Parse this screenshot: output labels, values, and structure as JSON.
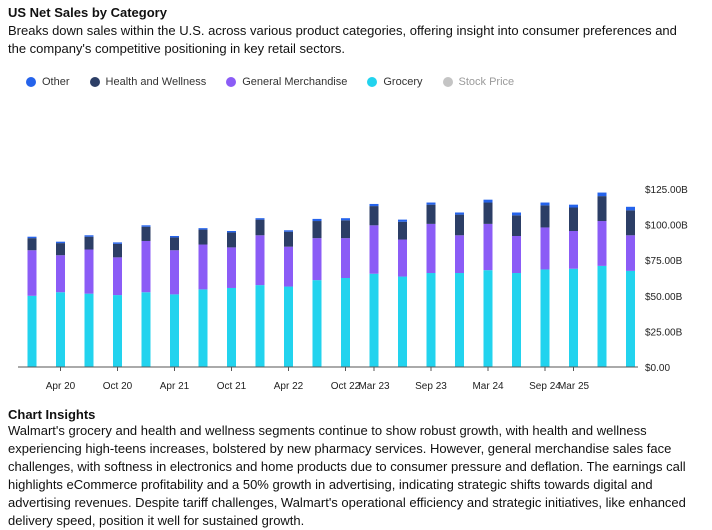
{
  "title": "US Net Sales by Category",
  "subtitle": "Breaks down sales within the U.S. across various product categories, offering insight into consumer preferences and the company's competitive positioning in key retail sectors.",
  "legend": [
    {
      "label": "Other",
      "color": "#2563eb",
      "muted": false
    },
    {
      "label": "Health and Wellness",
      "color": "#2c3e66",
      "muted": false
    },
    {
      "label": "General Merchandise",
      "color": "#8b5cf6",
      "muted": false
    },
    {
      "label": "Grocery",
      "color": "#22d3ee",
      "muted": false
    },
    {
      "label": "Stock Price",
      "color": "#c4c4c4",
      "muted": true
    }
  ],
  "chart_data": {
    "type": "bar",
    "stacked": true,
    "y_axis_position": "right",
    "ylim": [
      0,
      125
    ],
    "y_ticks": [
      0,
      25,
      50,
      75,
      100,
      125
    ],
    "y_tick_labels": [
      "$0.00",
      "$25.00B",
      "$50.00B",
      "$75.00B",
      "$100.00B",
      "$125.00B"
    ],
    "x_tick_labels": [
      {
        "index": 1,
        "label": "Apr 20"
      },
      {
        "index": 3,
        "label": "Oct 20"
      },
      {
        "index": 5,
        "label": "Apr 21"
      },
      {
        "index": 7,
        "label": "Oct 21"
      },
      {
        "index": 9,
        "label": "Apr 22"
      },
      {
        "index": 11,
        "label": "Oct 22"
      },
      {
        "index": 12,
        "label": "Mar 23"
      },
      {
        "index": 14,
        "label": "Sep 23"
      },
      {
        "index": 16,
        "label": "Mar 24"
      },
      {
        "index": 18,
        "label": "Sep 24"
      },
      {
        "index": 19,
        "label": "Mar 25"
      }
    ],
    "series": [
      {
        "name": "Grocery",
        "color": "#22d3ee",
        "values": [
          50,
          52.5,
          51.5,
          50.5,
          52.5,
          51,
          54.5,
          55.5,
          57.5,
          56.5,
          61,
          62.5,
          65.5,
          63.5,
          66,
          66,
          68,
          66,
          68.5,
          69,
          71,
          67.5
        ]
      },
      {
        "name": "General Merchandise",
        "color": "#8b5cf6",
        "values": [
          32,
          26,
          31,
          26.5,
          36,
          31,
          31.5,
          28.5,
          35,
          28,
          29.5,
          28,
          34,
          26,
          34.5,
          26.5,
          32.5,
          26,
          29.5,
          26.5,
          31.5,
          25
        ]
      },
      {
        "name": "Health and Wellness",
        "color": "#2c3e66",
        "values": [
          8.5,
          8.5,
          9,
          9.5,
          10,
          9,
          10.5,
          10.5,
          11,
          10.5,
          12,
          12.5,
          13.5,
          12.5,
          13.5,
          14.5,
          15,
          14.5,
          15.5,
          16.5,
          17.5,
          17.5
        ]
      },
      {
        "name": "Other",
        "color": "#2563eb",
        "values": [
          1,
          1,
          1,
          1,
          1,
          1,
          1,
          1,
          1,
          1,
          1.5,
          1.5,
          1.5,
          1.5,
          1.5,
          1.5,
          2,
          2,
          2,
          2,
          2.5,
          2.5
        ]
      }
    ]
  },
  "insights_title": "Chart Insights",
  "insights_text": "Walmart's grocery and health and wellness segments continue to show robust growth, with health and wellness experiencing high-teens increases, bolstered by new pharmacy services. However, general merchandise sales face challenges, with softness in electronics and home products due to consumer pressure and deflation. The earnings call highlights eCommerce profitability and a 50% growth in advertising, indicating strategic shifts towards digital and advertising revenues. Despite tariff challenges, Walmart's operational efficiency and strategic initiatives, like enhanced delivery speed, position it well for sustained growth."
}
